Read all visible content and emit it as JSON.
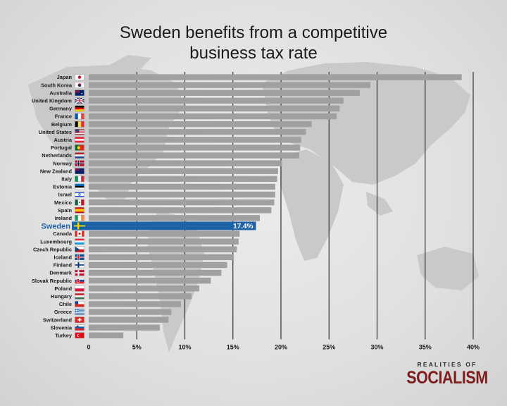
{
  "title_lines": [
    "Sweden benefits from a competitive",
    "business tax rate"
  ],
  "brand": {
    "top": "REALITIES OF",
    "main": "SOCIALISM",
    "color": "#7d1d1d"
  },
  "colors": {
    "bar": "#a0a0a0",
    "highlight": "#1f63a7",
    "gridline": "#333333",
    "highlight_label": "#1f63a7",
    "value_label": "#ffffff"
  },
  "chart_data": {
    "type": "bar",
    "orientation": "horizontal",
    "title": "Sweden benefits from a competitive business tax rate",
    "xlabel": "",
    "ylabel": "",
    "xlim": [
      0,
      40
    ],
    "x_ticks": [
      0,
      5,
      10,
      15,
      20,
      25,
      30,
      35,
      40
    ],
    "x_tick_labels": [
      "0",
      "5%",
      "10%",
      "15%",
      "20%",
      "25%",
      "30%",
      "35%",
      "40%"
    ],
    "grid": true,
    "highlight": "Sweden",
    "highlight_value_label": "17.4%",
    "categories": [
      "Japan",
      "South Korea",
      "Australia",
      "United Kingdom",
      "Germany",
      "France",
      "Belgium",
      "United States",
      "Austria",
      "Portugal",
      "Netherlands",
      "Norway",
      "New Zealand",
      "Italy",
      "Estonia",
      "Israel",
      "Mexico",
      "Spain",
      "Ireland",
      "Sweden",
      "Canada",
      "Luxembourg",
      "Czech Republic",
      "Iceland",
      "Finland",
      "Denmark",
      "Slovak Republic",
      "Poland",
      "Hungary",
      "Chile",
      "Greece",
      "Switzerland",
      "Slovenia",
      "Turkey"
    ],
    "values": [
      38.8,
      29.3,
      28.2,
      26.5,
      26.1,
      25.8,
      23.2,
      22.6,
      22.1,
      22.0,
      21.9,
      20.1,
      19.7,
      19.6,
      19.4,
      19.4,
      19.3,
      19.0,
      17.8,
      17.4,
      15.7,
      15.6,
      15.4,
      15.1,
      14.4,
      13.8,
      12.7,
      11.5,
      10.7,
      9.6,
      8.6,
      8.3,
      7.4,
      3.6
    ],
    "flags": [
      "japan-flag",
      "south-korea-flag",
      "australia-flag",
      "uk-flag",
      "germany-flag",
      "france-flag",
      "belgium-flag",
      "usa-flag",
      "austria-flag",
      "portugal-flag",
      "netherlands-flag",
      "norway-flag",
      "new-zealand-flag",
      "italy-flag",
      "estonia-flag",
      "israel-flag",
      "mexico-flag",
      "spain-flag",
      "ireland-flag",
      "sweden-flag",
      "canada-flag",
      "luxembourg-flag",
      "czech-flag",
      "iceland-flag",
      "finland-flag",
      "denmark-flag",
      "slovakia-flag",
      "poland-flag",
      "hungary-flag",
      "chile-flag",
      "greece-flag",
      "switzerland-flag",
      "slovenia-flag",
      "turkey-flag"
    ]
  }
}
